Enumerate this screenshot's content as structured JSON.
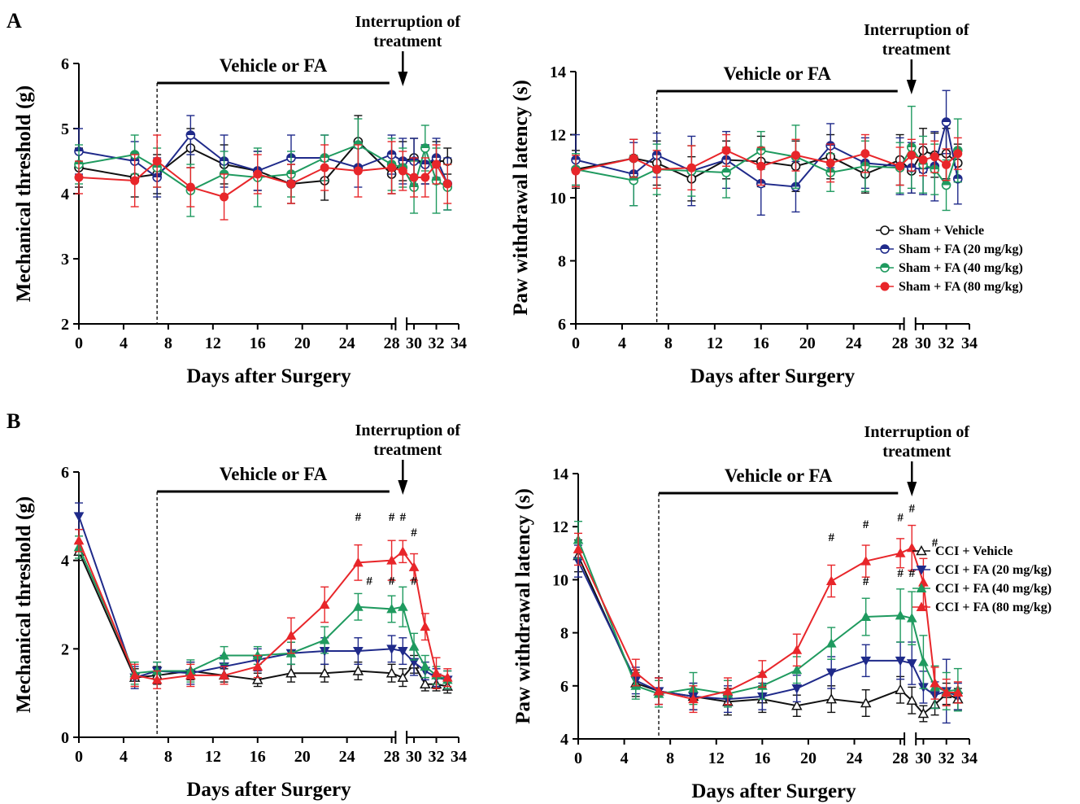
{
  "panel_labels": [
    "A",
    "B"
  ],
  "colors": {
    "vehicle": "#111111",
    "fa20": "#1f2a8a",
    "fa40": "#1f9a5f",
    "fa80": "#e8262a"
  },
  "chart_data": [
    {
      "id": "A-left",
      "type": "line",
      "panel": "A",
      "xlabel": "Days after Surgery",
      "ylabel": "Mechanical threshold (g)",
      "xlim": [
        0,
        34
      ],
      "ylim": [
        2,
        6
      ],
      "xticks": [
        "0",
        "4",
        "8",
        "12",
        "16",
        "20",
        "24",
        "28",
        "30",
        "32",
        "34"
      ],
      "yticks": [
        "2",
        "3",
        "4",
        "5",
        "6"
      ],
      "treatment_label": "Vehicle or FA",
      "interruption_label": [
        "Interruption of",
        "treatment"
      ],
      "legend": [],
      "significance": [],
      "x": [
        0,
        5,
        7,
        10,
        13,
        16,
        19,
        22,
        25,
        28,
        29,
        30,
        31,
        32,
        33
      ],
      "series": [
        {
          "name": "Sham + Vehicle",
          "marker": "circle-open",
          "colorKey": "vehicle",
          "values": [
            4.4,
            4.25,
            4.3,
            4.7,
            4.45,
            4.35,
            4.15,
            4.2,
            4.8,
            4.3,
            4.5,
            4.55,
            4.45,
            4.5,
            4.5
          ],
          "errors": [
            0.3,
            0.3,
            0.3,
            0.3,
            0.3,
            0.3,
            0.3,
            0.3,
            0.4,
            0.3,
            0.3,
            0.3,
            0.3,
            0.3,
            0.2
          ]
        },
        {
          "name": "Sham + FA (20 mg/kg)",
          "marker": "circle-half",
          "colorKey": "fa20",
          "values": [
            4.65,
            4.5,
            4.25,
            4.9,
            4.5,
            4.35,
            4.55,
            4.55,
            4.4,
            4.6,
            4.5,
            4.5,
            4.45,
            4.55,
            4.15
          ],
          "errors": [
            0.35,
            0.3,
            0.3,
            0.3,
            0.4,
            0.3,
            0.35,
            0.35,
            0.3,
            0.3,
            0.35,
            0.35,
            0.3,
            0.3,
            0.4
          ]
        },
        {
          "name": "Sham + FA (40 mg/kg)",
          "marker": "circle-half",
          "colorKey": "fa40",
          "values": [
            4.45,
            4.6,
            4.4,
            4.05,
            4.3,
            4.25,
            4.3,
            4.55,
            4.75,
            4.45,
            4.4,
            4.1,
            4.7,
            4.2,
            4.1
          ],
          "errors": [
            0.3,
            0.3,
            0.3,
            0.4,
            0.35,
            0.45,
            0.35,
            0.35,
            0.4,
            0.4,
            0.3,
            0.4,
            0.35,
            0.5,
            0.35
          ]
        },
        {
          "name": "Sham + FA (80 mg/kg)",
          "marker": "circle-filled",
          "colorKey": "fa80",
          "values": [
            4.25,
            4.2,
            4.5,
            4.1,
            3.95,
            4.3,
            4.15,
            4.4,
            4.35,
            4.4,
            4.35,
            4.25,
            4.25,
            4.45,
            4.15
          ],
          "errors": [
            0.25,
            0.4,
            0.4,
            0.3,
            0.35,
            0.3,
            0.3,
            0.35,
            0.4,
            0.4,
            0.3,
            0.3,
            0.3,
            0.3,
            0.3
          ]
        }
      ]
    },
    {
      "id": "A-right",
      "type": "line",
      "panel": "A",
      "xlabel": "Days after Surgery",
      "ylabel": "Paw withdrawal latency (s)",
      "xlim": [
        0,
        34
      ],
      "ylim": [
        6,
        14
      ],
      "xticks": [
        "0",
        "4",
        "8",
        "12",
        "16",
        "20",
        "24",
        "28",
        "30",
        "32",
        "34"
      ],
      "yticks": [
        "6",
        "8",
        "10",
        "12",
        "14"
      ],
      "treatment_label": "Vehicle or FA",
      "interruption_label": [
        "Interruption of",
        "treatment"
      ],
      "legend": [
        "Sham + Vehicle",
        "Sham + FA (20 mg/kg)",
        "Sham + FA (40 mg/kg)",
        "Sham + FA (80 mg/kg)"
      ],
      "significance": [],
      "x": [
        0,
        5,
        7,
        10,
        13,
        16,
        19,
        22,
        25,
        28,
        29,
        30,
        31,
        32,
        33
      ],
      "series": [
        {
          "name": "Sham + Vehicle",
          "marker": "circle-open",
          "colorKey": "vehicle",
          "values": [
            10.9,
            11.25,
            11.1,
            10.6,
            11.2,
            11.15,
            11.0,
            11.3,
            10.75,
            11.2,
            10.85,
            11.5,
            11.35,
            11.4,
            11.1
          ],
          "errors": [
            0.6,
            0.6,
            0.7,
            0.7,
            0.6,
            0.8,
            0.8,
            0.7,
            0.6,
            0.8,
            0.7,
            0.7,
            0.7,
            0.8,
            0.6
          ]
        },
        {
          "name": "Sham + FA (20 mg/kg)",
          "marker": "circle-half",
          "colorKey": "fa20",
          "values": [
            11.2,
            10.75,
            11.35,
            10.85,
            11.2,
            10.45,
            10.35,
            11.65,
            11.1,
            11.0,
            10.95,
            10.9,
            11.0,
            12.4,
            10.6
          ],
          "errors": [
            0.8,
            1.0,
            0.7,
            1.1,
            0.9,
            1.0,
            0.8,
            0.7,
            0.8,
            0.9,
            0.8,
            0.8,
            1.1,
            1.0,
            0.8
          ]
        },
        {
          "name": "Sham + FA (40 mg/kg)",
          "marker": "circle-half",
          "colorKey": "fa40",
          "values": [
            10.9,
            10.55,
            10.9,
            10.85,
            10.8,
            11.5,
            11.3,
            10.8,
            11.0,
            10.95,
            11.6,
            11.05,
            10.9,
            10.4,
            11.5
          ],
          "errors": [
            0.5,
            0.8,
            0.8,
            0.8,
            0.8,
            0.6,
            1.0,
            0.6,
            0.8,
            0.8,
            1.3,
            0.9,
            0.8,
            0.8,
            1.0
          ]
        },
        {
          "name": "Sham + FA (80 mg/kg)",
          "marker": "circle-filled",
          "colorKey": "fa80",
          "values": [
            10.85,
            11.25,
            10.9,
            10.95,
            11.5,
            11.0,
            11.35,
            11.1,
            11.4,
            11.0,
            11.35,
            11.2,
            11.3,
            11.05,
            11.4
          ],
          "errors": [
            0.5,
            0.6,
            0.6,
            0.7,
            0.5,
            0.6,
            0.5,
            0.6,
            0.6,
            0.6,
            0.5,
            0.5,
            0.5,
            0.5,
            0.5
          ]
        }
      ]
    },
    {
      "id": "B-left",
      "type": "line",
      "panel": "B",
      "xlabel": "Days after Surgery",
      "ylabel": "Mechanical threshold (g)",
      "xlim": [
        0,
        34
      ],
      "ylim": [
        0,
        6
      ],
      "xticks": [
        "0",
        "4",
        "8",
        "12",
        "16",
        "20",
        "24",
        "28",
        "30",
        "32",
        "34"
      ],
      "yticks": [
        "0",
        "2",
        "4",
        "6"
      ],
      "treatment_label": "Vehicle or FA",
      "interruption_label": [
        "Interruption of",
        "treatment"
      ],
      "legend": [],
      "x": [
        0,
        5,
        7,
        10,
        13,
        16,
        19,
        22,
        25,
        28,
        29,
        30,
        31,
        32,
        33
      ],
      "series": [
        {
          "name": "CCI + Vehicle",
          "marker": "triangle-up-open",
          "colorKey": "vehicle",
          "values": [
            4.2,
            1.35,
            1.4,
            1.5,
            1.4,
            1.3,
            1.45,
            1.45,
            1.5,
            1.45,
            1.35,
            1.65,
            1.2,
            1.2,
            1.15
          ],
          "errors": [
            0.2,
            0.2,
            0.2,
            0.2,
            0.15,
            0.15,
            0.2,
            0.2,
            0.2,
            0.2,
            0.2,
            0.2,
            0.15,
            0.15,
            0.15
          ]
        },
        {
          "name": "CCI + FA (20 mg/kg)",
          "marker": "triangle-down",
          "colorKey": "fa20",
          "values": [
            5.0,
            1.35,
            1.5,
            1.45,
            1.6,
            1.75,
            1.9,
            1.95,
            1.95,
            2.0,
            1.95,
            1.7,
            1.5,
            1.35,
            1.3
          ],
          "errors": [
            0.3,
            0.25,
            0.2,
            0.25,
            0.25,
            0.25,
            0.25,
            0.3,
            0.3,
            0.3,
            0.3,
            0.3,
            0.2,
            0.2,
            0.2
          ]
        },
        {
          "name": "CCI + FA (40 mg/kg)",
          "marker": "triangle-up",
          "colorKey": "fa40",
          "values": [
            4.3,
            1.45,
            1.5,
            1.5,
            1.85,
            1.85,
            1.9,
            2.2,
            2.95,
            2.9,
            2.95,
            2.05,
            1.6,
            1.4,
            1.3
          ],
          "errors": [
            0.25,
            0.25,
            0.2,
            0.25,
            0.2,
            0.2,
            0.25,
            0.3,
            0.3,
            0.3,
            0.45,
            0.3,
            0.25,
            0.2,
            0.2
          ]
        },
        {
          "name": "CCI + FA (80 mg/kg)",
          "marker": "triangle-up",
          "colorKey": "fa80",
          "values": [
            4.45,
            1.4,
            1.3,
            1.4,
            1.4,
            1.6,
            2.3,
            3.0,
            3.95,
            4.0,
            4.2,
            3.85,
            2.5,
            1.45,
            1.35
          ],
          "errors": [
            0.25,
            0.25,
            0.2,
            0.25,
            0.2,
            0.25,
            0.4,
            0.4,
            0.4,
            0.45,
            0.25,
            0.3,
            0.3,
            0.35,
            0.2
          ]
        }
      ],
      "significance": [
        {
          "x": 25,
          "y": 4.9,
          "label": "#"
        },
        {
          "x": 28,
          "y": 4.9,
          "label": "#"
        },
        {
          "x": 29,
          "y": 4.9,
          "label": "#"
        },
        {
          "x": 30,
          "y": 4.55,
          "label": "#"
        },
        {
          "x": 26,
          "y": 3.45,
          "label": "#"
        },
        {
          "x": 28,
          "y": 3.45,
          "label": "#"
        },
        {
          "x": 30,
          "y": 3.45,
          "label": "#"
        }
      ]
    },
    {
      "id": "B-right",
      "type": "line",
      "panel": "B",
      "xlabel": "Days after Surgery",
      "ylabel": "Paw withdrawal latency (s)",
      "xlim": [
        0,
        34
      ],
      "ylim": [
        4,
        14
      ],
      "xticks": [
        "0",
        "4",
        "8",
        "12",
        "16",
        "20",
        "24",
        "28",
        "30",
        "32",
        "34"
      ],
      "yticks": [
        "4",
        "6",
        "8",
        "10",
        "12",
        "14"
      ],
      "treatment_label": "Vehicle or FA",
      "interruption_label": [
        "Interruption of",
        "treatment"
      ],
      "legend": [
        "CCI + Vehicle",
        "CCI + FA (20 mg/kg)",
        "CCI + FA (40 mg/kg)",
        "CCI + FA (80 mg/kg)"
      ],
      "x": [
        0,
        5,
        7,
        10,
        13,
        16,
        19,
        22,
        25,
        28,
        29,
        30,
        31,
        32,
        33
      ],
      "series": [
        {
          "name": "CCI + Vehicle",
          "marker": "triangle-up-open",
          "colorKey": "vehicle",
          "values": [
            10.9,
            6.1,
            5.8,
            5.6,
            5.4,
            5.5,
            5.25,
            5.5,
            5.35,
            5.85,
            5.45,
            4.95,
            5.3,
            5.7,
            5.5
          ],
          "errors": [
            0.6,
            0.5,
            0.5,
            0.5,
            0.5,
            0.5,
            0.4,
            0.5,
            0.5,
            0.5,
            0.5,
            0.3,
            0.4,
            0.4,
            0.4
          ]
        },
        {
          "name": "CCI + FA (20 mg/kg)",
          "marker": "triangle-down",
          "colorKey": "fa20",
          "values": [
            10.7,
            6.2,
            5.8,
            5.6,
            5.5,
            5.6,
            5.9,
            6.5,
            6.95,
            6.95,
            6.85,
            5.95,
            5.65,
            5.8,
            5.6
          ],
          "errors": [
            0.6,
            0.5,
            0.5,
            0.5,
            0.5,
            0.5,
            0.5,
            0.6,
            0.6,
            0.7,
            0.8,
            0.6,
            0.5,
            1.2,
            0.5
          ]
        },
        {
          "name": "CCI + FA (40 mg/kg)",
          "marker": "triangle-up",
          "colorKey": "fa40",
          "values": [
            11.5,
            6.0,
            5.7,
            5.9,
            5.7,
            6.0,
            6.6,
            7.6,
            8.6,
            8.65,
            8.55,
            6.9,
            5.95,
            5.8,
            5.85
          ],
          "errors": [
            0.7,
            0.5,
            0.5,
            0.6,
            0.5,
            0.5,
            0.5,
            0.6,
            0.7,
            1.0,
            1.0,
            1.0,
            0.8,
            0.7,
            0.8
          ]
        },
        {
          "name": "CCI + FA (80 mg/kg)",
          "marker": "triangle-up",
          "colorKey": "fa80",
          "values": [
            11.15,
            6.5,
            5.8,
            5.5,
            5.8,
            6.45,
            7.35,
            9.95,
            10.7,
            11.0,
            11.2,
            9.9,
            6.1,
            5.75,
            5.75
          ],
          "errors": [
            0.6,
            0.5,
            0.5,
            0.5,
            0.5,
            0.5,
            0.6,
            0.6,
            0.6,
            0.55,
            0.85,
            0.9,
            0.6,
            0.5,
            0.4
          ]
        }
      ],
      "significance": [
        {
          "x": 22,
          "y": 11.45,
          "label": "#"
        },
        {
          "x": 25,
          "y": 11.95,
          "label": "#"
        },
        {
          "x": 28,
          "y": 12.2,
          "label": "#"
        },
        {
          "x": 29,
          "y": 12.55,
          "label": "#"
        },
        {
          "x": 31,
          "y": 11.25,
          "label": "#"
        },
        {
          "x": 25,
          "y": 9.8,
          "label": "#"
        },
        {
          "x": 28,
          "y": 10.1,
          "label": "#"
        },
        {
          "x": 29,
          "y": 10.1,
          "label": "#"
        }
      ]
    }
  ]
}
